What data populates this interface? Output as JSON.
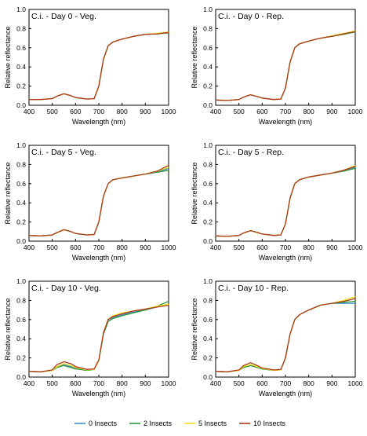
{
  "figure": {
    "legend": [
      {
        "name": "0 Insects",
        "color": "#3a8fd6"
      },
      {
        "name": "2 Insects",
        "color": "#2e9a3c"
      },
      {
        "name": "5 Insects",
        "color": "#f2e21f"
      },
      {
        "name": "10 Insects",
        "color": "#b03a1a"
      }
    ]
  },
  "chart_data": [
    {
      "type": "line",
      "title": "C.i. - Day 0 - Veg.",
      "xlabel": "Wavelength (nm)",
      "ylabel": "Relative reflectance",
      "xlim": [
        400,
        1000
      ],
      "ylim": [
        0.0,
        1.0
      ],
      "xticks": [
        "400",
        "500",
        "600",
        "700",
        "800",
        "900",
        "1000"
      ],
      "yticks": [
        "0.0",
        "0.2",
        "0.4",
        "0.6",
        "0.8",
        "1.0"
      ],
      "x": [
        400,
        450,
        500,
        520,
        550,
        580,
        600,
        650,
        680,
        700,
        720,
        740,
        760,
        800,
        850,
        900,
        950,
        1000
      ],
      "series": [
        {
          "name": "0 Insects",
          "values": [
            0.06,
            0.06,
            0.07,
            0.095,
            0.12,
            0.1,
            0.08,
            0.065,
            0.07,
            0.2,
            0.48,
            0.62,
            0.66,
            0.69,
            0.72,
            0.74,
            0.745,
            0.76
          ]
        },
        {
          "name": "2 Insects",
          "values": [
            0.06,
            0.06,
            0.07,
            0.095,
            0.12,
            0.1,
            0.08,
            0.065,
            0.07,
            0.2,
            0.48,
            0.62,
            0.66,
            0.69,
            0.72,
            0.74,
            0.745,
            0.755
          ]
        },
        {
          "name": "5 Insects",
          "values": [
            0.06,
            0.06,
            0.07,
            0.095,
            0.12,
            0.1,
            0.08,
            0.065,
            0.07,
            0.2,
            0.48,
            0.62,
            0.66,
            0.69,
            0.72,
            0.74,
            0.75,
            0.765
          ]
        },
        {
          "name": "10 Insects",
          "values": [
            0.06,
            0.06,
            0.07,
            0.095,
            0.12,
            0.1,
            0.08,
            0.065,
            0.07,
            0.2,
            0.48,
            0.62,
            0.66,
            0.69,
            0.72,
            0.74,
            0.745,
            0.76
          ]
        }
      ]
    },
    {
      "type": "line",
      "title": "C.i. - Day 0 - Rep.",
      "xlabel": "Wavelength (nm)",
      "ylabel": "Relative reflectance",
      "xlim": [
        400,
        1000
      ],
      "ylim": [
        0.0,
        1.0
      ],
      "xticks": [
        "400",
        "500",
        "600",
        "700",
        "800",
        "900",
        "1000"
      ],
      "yticks": [
        "0.0",
        "0.2",
        "0.4",
        "0.6",
        "0.8",
        "1.0"
      ],
      "x": [
        400,
        450,
        500,
        520,
        550,
        580,
        600,
        650,
        680,
        700,
        720,
        740,
        760,
        800,
        850,
        900,
        950,
        1000
      ],
      "series": [
        {
          "name": "0 Insects",
          "values": [
            0.055,
            0.05,
            0.06,
            0.085,
            0.11,
            0.09,
            0.075,
            0.06,
            0.065,
            0.18,
            0.45,
            0.6,
            0.64,
            0.67,
            0.7,
            0.72,
            0.745,
            0.77
          ]
        },
        {
          "name": "2 Insects",
          "values": [
            0.055,
            0.05,
            0.06,
            0.085,
            0.11,
            0.09,
            0.075,
            0.06,
            0.065,
            0.18,
            0.45,
            0.6,
            0.64,
            0.67,
            0.7,
            0.72,
            0.74,
            0.765
          ]
        },
        {
          "name": "5 Insects",
          "values": [
            0.055,
            0.05,
            0.06,
            0.085,
            0.11,
            0.09,
            0.075,
            0.06,
            0.065,
            0.18,
            0.45,
            0.6,
            0.64,
            0.67,
            0.7,
            0.725,
            0.75,
            0.775
          ]
        },
        {
          "name": "10 Insects",
          "values": [
            0.055,
            0.05,
            0.06,
            0.085,
            0.11,
            0.09,
            0.075,
            0.06,
            0.065,
            0.18,
            0.45,
            0.6,
            0.64,
            0.67,
            0.7,
            0.72,
            0.745,
            0.77
          ]
        }
      ]
    },
    {
      "type": "line",
      "title": "C.i. - Day 5 - Veg.",
      "xlabel": "Wavelength (nm)",
      "ylabel": "Relative reflectance",
      "xlim": [
        400,
        1000
      ],
      "ylim": [
        0.0,
        1.0
      ],
      "xticks": [
        "400",
        "500",
        "600",
        "700",
        "800",
        "900",
        "1000"
      ],
      "yticks": [
        "0.0",
        "0.2",
        "0.4",
        "0.6",
        "0.8",
        "1.0"
      ],
      "x": [
        400,
        450,
        500,
        520,
        550,
        580,
        600,
        650,
        680,
        700,
        720,
        740,
        760,
        800,
        850,
        900,
        950,
        1000
      ],
      "series": [
        {
          "name": "0 Insects",
          "values": [
            0.06,
            0.055,
            0.065,
            0.09,
            0.12,
            0.1,
            0.08,
            0.065,
            0.07,
            0.2,
            0.47,
            0.6,
            0.64,
            0.66,
            0.68,
            0.7,
            0.72,
            0.76
          ]
        },
        {
          "name": "2 Insects",
          "values": [
            0.06,
            0.055,
            0.065,
            0.09,
            0.12,
            0.1,
            0.08,
            0.065,
            0.07,
            0.2,
            0.47,
            0.6,
            0.64,
            0.66,
            0.68,
            0.7,
            0.72,
            0.74
          ]
        },
        {
          "name": "5 Insects",
          "values": [
            0.06,
            0.055,
            0.065,
            0.09,
            0.12,
            0.1,
            0.08,
            0.065,
            0.07,
            0.2,
            0.47,
            0.6,
            0.64,
            0.66,
            0.68,
            0.7,
            0.73,
            0.77
          ]
        },
        {
          "name": "10 Insects",
          "values": [
            0.06,
            0.055,
            0.065,
            0.09,
            0.12,
            0.1,
            0.08,
            0.065,
            0.07,
            0.2,
            0.47,
            0.6,
            0.64,
            0.66,
            0.68,
            0.7,
            0.73,
            0.79
          ]
        }
      ]
    },
    {
      "type": "line",
      "title": "C.i. - Day 5 - Rep.",
      "xlabel": "Wavelength (nm)",
      "ylabel": "Relative reflectance",
      "xlim": [
        400,
        1000
      ],
      "ylim": [
        0.0,
        1.0
      ],
      "xticks": [
        "400",
        "500",
        "600",
        "700",
        "800",
        "900",
        "1000"
      ],
      "yticks": [
        "0.0",
        "0.2",
        "0.4",
        "0.6",
        "0.8",
        "1.0"
      ],
      "x": [
        400,
        450,
        500,
        520,
        550,
        580,
        600,
        650,
        680,
        700,
        720,
        740,
        760,
        800,
        850,
        900,
        950,
        1000
      ],
      "series": [
        {
          "name": "0 Insects",
          "values": [
            0.055,
            0.05,
            0.06,
            0.085,
            0.11,
            0.09,
            0.075,
            0.06,
            0.065,
            0.18,
            0.45,
            0.6,
            0.64,
            0.67,
            0.69,
            0.71,
            0.73,
            0.77
          ]
        },
        {
          "name": "2 Insects",
          "values": [
            0.055,
            0.05,
            0.06,
            0.085,
            0.11,
            0.09,
            0.075,
            0.06,
            0.065,
            0.18,
            0.45,
            0.6,
            0.64,
            0.67,
            0.69,
            0.71,
            0.73,
            0.76
          ]
        },
        {
          "name": "5 Insects",
          "values": [
            0.055,
            0.05,
            0.06,
            0.085,
            0.11,
            0.09,
            0.075,
            0.06,
            0.065,
            0.18,
            0.45,
            0.6,
            0.64,
            0.67,
            0.69,
            0.71,
            0.74,
            0.79
          ]
        },
        {
          "name": "10 Insects",
          "values": [
            0.055,
            0.05,
            0.06,
            0.085,
            0.11,
            0.09,
            0.075,
            0.06,
            0.065,
            0.18,
            0.45,
            0.6,
            0.64,
            0.67,
            0.69,
            0.71,
            0.74,
            0.78
          ]
        }
      ]
    },
    {
      "type": "line",
      "title": "C.i. - Day 10 - Veg.",
      "xlabel": "Wavelength (nm)",
      "ylabel": "Relative reflectance",
      "xlim": [
        400,
        1000
      ],
      "ylim": [
        0.0,
        1.0
      ],
      "xticks": [
        "400",
        "500",
        "600",
        "700",
        "800",
        "900",
        "1000"
      ],
      "yticks": [
        "0.0",
        "0.2",
        "0.4",
        "0.6",
        "0.8",
        "1.0"
      ],
      "x": [
        400,
        450,
        500,
        520,
        550,
        580,
        600,
        650,
        680,
        700,
        720,
        740,
        760,
        800,
        850,
        900,
        950,
        1000
      ],
      "series": [
        {
          "name": "0 Insects",
          "values": [
            0.06,
            0.055,
            0.07,
            0.1,
            0.13,
            0.11,
            0.09,
            0.07,
            0.08,
            0.17,
            0.45,
            0.58,
            0.62,
            0.65,
            0.68,
            0.7,
            0.73,
            0.76
          ]
        },
        {
          "name": "2 Insects",
          "values": [
            0.06,
            0.055,
            0.07,
            0.1,
            0.12,
            0.1,
            0.085,
            0.07,
            0.08,
            0.17,
            0.45,
            0.58,
            0.61,
            0.64,
            0.67,
            0.7,
            0.74,
            0.79
          ]
        },
        {
          "name": "5 Insects",
          "values": [
            0.06,
            0.055,
            0.07,
            0.11,
            0.14,
            0.12,
            0.1,
            0.075,
            0.08,
            0.17,
            0.47,
            0.6,
            0.64,
            0.67,
            0.69,
            0.71,
            0.74,
            0.76
          ]
        },
        {
          "name": "10 Insects",
          "values": [
            0.06,
            0.055,
            0.075,
            0.13,
            0.16,
            0.14,
            0.11,
            0.08,
            0.085,
            0.18,
            0.46,
            0.6,
            0.63,
            0.66,
            0.69,
            0.71,
            0.73,
            0.75
          ]
        }
      ]
    },
    {
      "type": "line",
      "title": "C.i. - Day 10 - Rep.",
      "xlabel": "Wavelength (nm)",
      "ylabel": "Relative reflectance",
      "xlim": [
        400,
        1000
      ],
      "ylim": [
        0.0,
        1.0
      ],
      "xticks": [
        "400",
        "500",
        "600",
        "700",
        "800",
        "900",
        "1000"
      ],
      "yticks": [
        "0.0",
        "0.2",
        "0.4",
        "0.6",
        "0.8",
        "1.0"
      ],
      "x": [
        400,
        450,
        500,
        520,
        550,
        580,
        600,
        650,
        680,
        700,
        720,
        740,
        760,
        800,
        850,
        900,
        950,
        1000
      ],
      "series": [
        {
          "name": "0 Insects",
          "values": [
            0.06,
            0.055,
            0.07,
            0.1,
            0.12,
            0.1,
            0.085,
            0.07,
            0.075,
            0.2,
            0.45,
            0.6,
            0.65,
            0.7,
            0.75,
            0.77,
            0.77,
            0.77
          ]
        },
        {
          "name": "2 Insects",
          "values": [
            0.06,
            0.055,
            0.07,
            0.1,
            0.12,
            0.1,
            0.085,
            0.07,
            0.075,
            0.2,
            0.45,
            0.6,
            0.65,
            0.7,
            0.75,
            0.77,
            0.78,
            0.79
          ]
        },
        {
          "name": "5 Insects",
          "values": [
            0.06,
            0.055,
            0.07,
            0.11,
            0.13,
            0.11,
            0.09,
            0.07,
            0.075,
            0.2,
            0.45,
            0.6,
            0.65,
            0.7,
            0.75,
            0.77,
            0.8,
            0.84
          ]
        },
        {
          "name": "10 Insects",
          "values": [
            0.06,
            0.055,
            0.075,
            0.12,
            0.15,
            0.12,
            0.095,
            0.075,
            0.08,
            0.2,
            0.45,
            0.6,
            0.65,
            0.7,
            0.75,
            0.77,
            0.79,
            0.82
          ]
        }
      ]
    }
  ]
}
